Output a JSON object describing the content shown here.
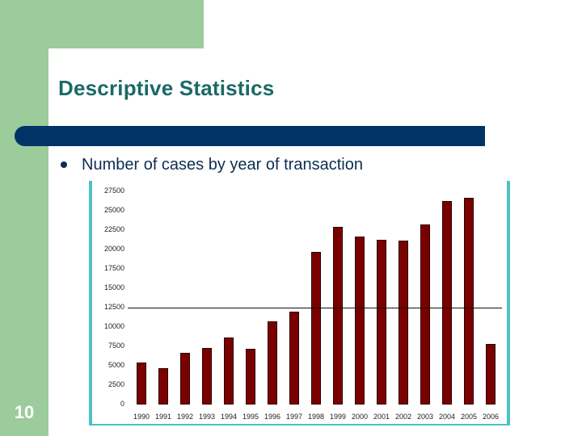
{
  "slide": {
    "title": "Descriptive Statistics",
    "bullet": "Number of cases by year of transaction",
    "page_number": "10",
    "colors": {
      "background_green": "#9ccb9c",
      "title": "#1a6a66",
      "header_bar": "#003366",
      "bullet_text": "#0d2d52",
      "chart_frame": "#4cc2c4",
      "bar_fill": "#7a0000"
    }
  },
  "chart_data": {
    "type": "bar",
    "title": "",
    "xlabel": "",
    "ylabel": "",
    "ylim": [
      0,
      27500
    ],
    "yticks": [
      0,
      2500,
      5000,
      7500,
      10000,
      12500,
      15000,
      17500,
      20000,
      22500,
      25000,
      27500
    ],
    "categories": [
      "1990",
      "1991",
      "1992",
      "1993",
      "1994",
      "1995",
      "1996",
      "1997",
      "1998",
      "1999",
      "2000",
      "2001",
      "2002",
      "2003",
      "2004",
      "2005",
      "2006"
    ],
    "values": [
      5400,
      4700,
      6700,
      7300,
      8600,
      7200,
      10700,
      12000,
      19700,
      22900,
      21700,
      21300,
      21100,
      23200,
      26300,
      26700,
      7800
    ],
    "reference_line": 12500,
    "grid": false,
    "legend": null
  }
}
